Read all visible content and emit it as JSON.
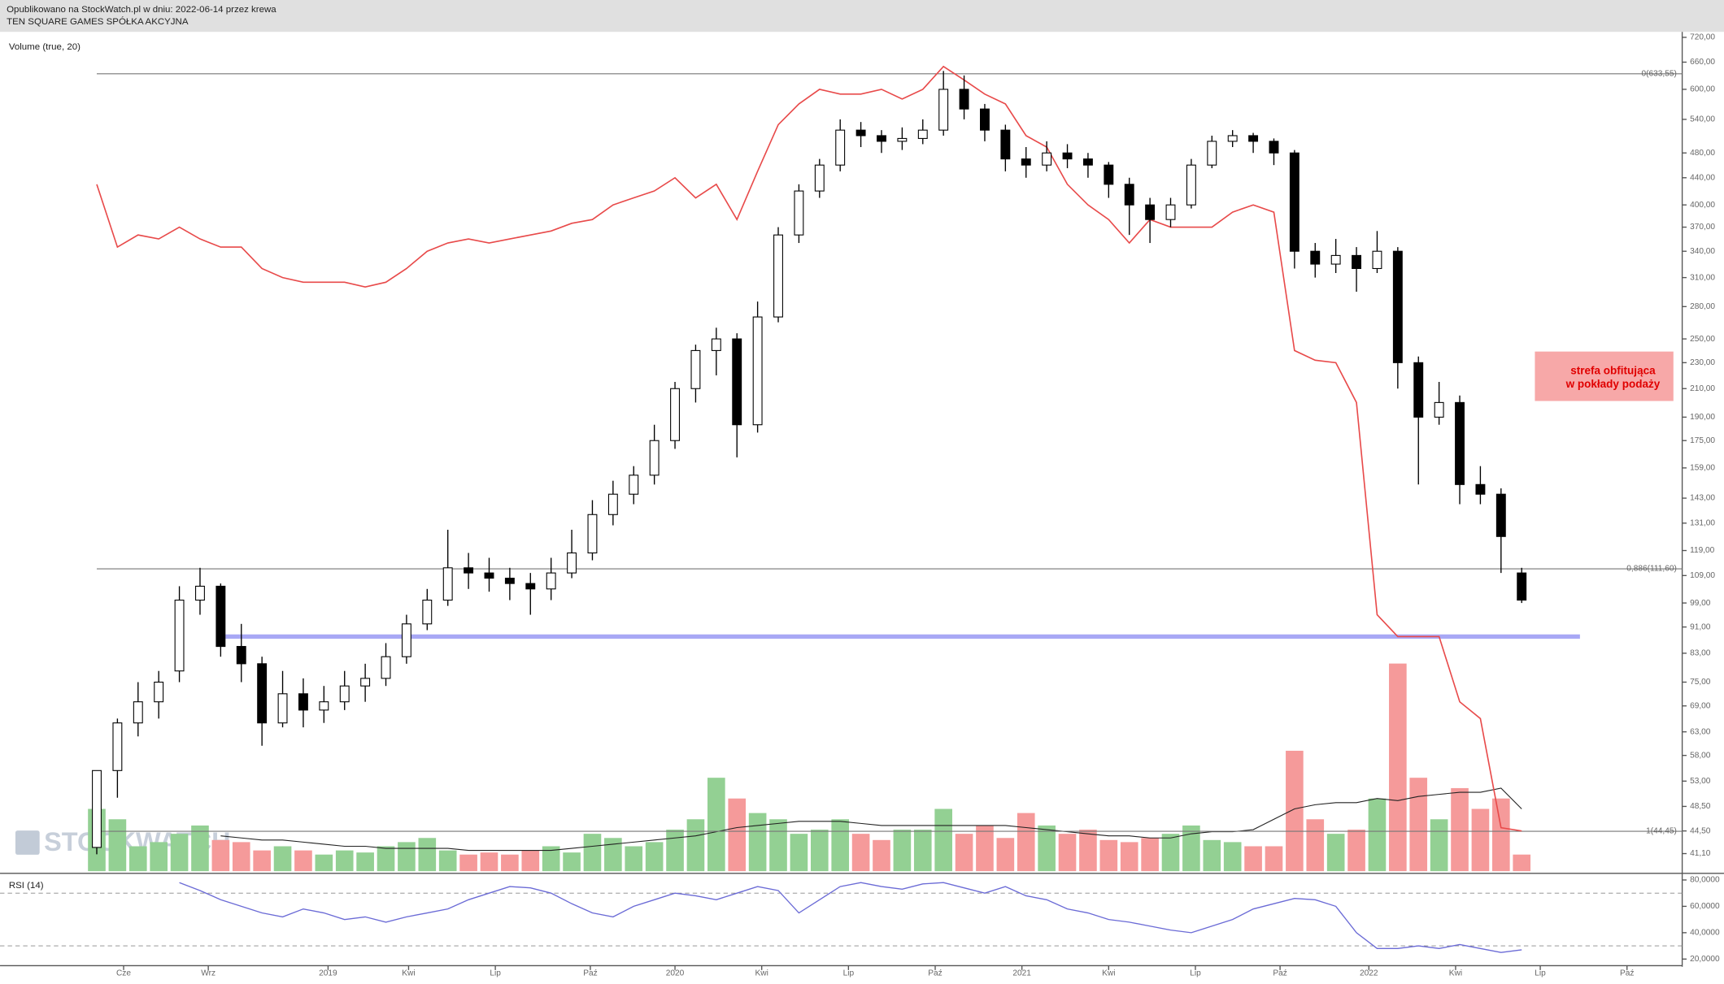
{
  "header": {
    "line1": "Opublikowano na StockWatch.pl w dniu: 2022-06-14 przez krewa",
    "line2": "TEN SQUARE GAMES SPÓŁKA AKCYJNA"
  },
  "watermark": "STOCKWATCH",
  "annotation": {
    "line1": "strefa obfitująca",
    "line2": "w pokłady podaży"
  },
  "chart_data": {
    "type": "candlestick",
    "log_scale": true,
    "ylim": [
      41.1,
      720
    ],
    "yticks": [
      {
        "value": 720,
        "label": "720,00"
      },
      {
        "value": 660,
        "label": "660,00"
      },
      {
        "value": 600,
        "label": "600,00"
      },
      {
        "value": 540,
        "label": "540,00"
      },
      {
        "value": 480,
        "label": "480,00"
      },
      {
        "value": 440,
        "label": "440,00"
      },
      {
        "value": 400,
        "label": "400,00"
      },
      {
        "value": 370,
        "label": "370,00"
      },
      {
        "value": 340,
        "label": "340,00"
      },
      {
        "value": 310,
        "label": "310,00"
      },
      {
        "value": 280,
        "label": "280,00"
      },
      {
        "value": 250,
        "label": "250,00"
      },
      {
        "value": 230,
        "label": "230,00"
      },
      {
        "value": 210,
        "label": "210,00"
      },
      {
        "value": 190,
        "label": "190,00"
      },
      {
        "value": 175,
        "label": "175,00"
      },
      {
        "value": 159,
        "label": "159,00"
      },
      {
        "value": 143,
        "label": "143,00"
      },
      {
        "value": 131,
        "label": "131,00"
      },
      {
        "value": 119,
        "label": "119,00"
      },
      {
        "value": 109,
        "label": "109,00"
      },
      {
        "value": 99,
        "label": "99,00"
      },
      {
        "value": 91,
        "label": "91,00"
      },
      {
        "value": 83,
        "label": "83,00"
      },
      {
        "value": 75,
        "label": "75,00"
      },
      {
        "value": 69,
        "label": "69,00"
      },
      {
        "value": 63,
        "label": "63,00"
      },
      {
        "value": 58,
        "label": "58,00"
      },
      {
        "value": 53,
        "label": "53,00"
      },
      {
        "value": 48.5,
        "label": "48,50"
      },
      {
        "value": 44.5,
        "label": "44,50"
      },
      {
        "value": 41.1,
        "label": "41,10"
      }
    ],
    "xlim": [
      0,
      69
    ],
    "xticks": [
      {
        "value": 1.3,
        "label": "Cze"
      },
      {
        "value": 5.4,
        "label": "Wrz"
      },
      {
        "value": 11.2,
        "label": "2019"
      },
      {
        "value": 15.1,
        "label": "Kwi"
      },
      {
        "value": 19.3,
        "label": "Lip"
      },
      {
        "value": 23.9,
        "label": "Paź"
      },
      {
        "value": 28.0,
        "label": "2020"
      },
      {
        "value": 32.2,
        "label": "Kwi"
      },
      {
        "value": 36.4,
        "label": "Lip"
      },
      {
        "value": 40.6,
        "label": "Paź"
      },
      {
        "value": 44.8,
        "label": "2021"
      },
      {
        "value": 49.0,
        "label": "Kwi"
      },
      {
        "value": 53.2,
        "label": "Lip"
      },
      {
        "value": 57.3,
        "label": "Paź"
      },
      {
        "value": 61.6,
        "label": "2022"
      },
      {
        "value": 65.8,
        "label": "Kwi"
      },
      {
        "value": 69.9,
        "label": "Lip"
      },
      {
        "value": 74.1,
        "label": "Paź"
      }
    ],
    "candles": [
      [
        42,
        55,
        41,
        55
      ],
      [
        55,
        66,
        50,
        65
      ],
      [
        65,
        75,
        62,
        70
      ],
      [
        70,
        78,
        66,
        75
      ],
      [
        78,
        105,
        75,
        100
      ],
      [
        100,
        112,
        95,
        105
      ],
      [
        105,
        106,
        82,
        85
      ],
      [
        85,
        92,
        75,
        80
      ],
      [
        80,
        82,
        60,
        65
      ],
      [
        65,
        78,
        64,
        72
      ],
      [
        72,
        76,
        64,
        68
      ],
      [
        68,
        74,
        65,
        70
      ],
      [
        70,
        78,
        68,
        74
      ],
      [
        74,
        80,
        70,
        76
      ],
      [
        76,
        86,
        74,
        82
      ],
      [
        82,
        95,
        80,
        92
      ],
      [
        92,
        104,
        90,
        100
      ],
      [
        100,
        128,
        98,
        112
      ],
      [
        112,
        118,
        104,
        110
      ],
      [
        110,
        116,
        103,
        108
      ],
      [
        108,
        112,
        100,
        106
      ],
      [
        106,
        110,
        95,
        104
      ],
      [
        104,
        116,
        100,
        110
      ],
      [
        110,
        128,
        108,
        118
      ],
      [
        118,
        142,
        115,
        135
      ],
      [
        135,
        152,
        130,
        145
      ],
      [
        145,
        160,
        140,
        155
      ],
      [
        155,
        185,
        150,
        175
      ],
      [
        175,
        215,
        170,
        210
      ],
      [
        210,
        245,
        200,
        240
      ],
      [
        240,
        260,
        220,
        250
      ],
      [
        250,
        255,
        165,
        185
      ],
      [
        185,
        285,
        180,
        270
      ],
      [
        270,
        370,
        265,
        360
      ],
      [
        360,
        430,
        350,
        420
      ],
      [
        420,
        470,
        410,
        460
      ],
      [
        460,
        540,
        450,
        520
      ],
      [
        520,
        535,
        490,
        510
      ],
      [
        510,
        520,
        480,
        500
      ],
      [
        500,
        525,
        485,
        505
      ],
      [
        505,
        540,
        495,
        520
      ],
      [
        520,
        640,
        510,
        600
      ],
      [
        600,
        630,
        540,
        560
      ],
      [
        560,
        570,
        500,
        520
      ],
      [
        520,
        530,
        450,
        470
      ],
      [
        470,
        490,
        440,
        460
      ],
      [
        460,
        500,
        450,
        480
      ],
      [
        480,
        495,
        455,
        470
      ],
      [
        470,
        480,
        440,
        460
      ],
      [
        460,
        465,
        410,
        430
      ],
      [
        430,
        440,
        360,
        400
      ],
      [
        400,
        410,
        350,
        380
      ],
      [
        380,
        410,
        370,
        400
      ],
      [
        400,
        470,
        395,
        460
      ],
      [
        460,
        510,
        455,
        500
      ],
      [
        500,
        520,
        490,
        510
      ],
      [
        510,
        515,
        480,
        500
      ],
      [
        500,
        505,
        460,
        480
      ],
      [
        480,
        485,
        320,
        340
      ],
      [
        340,
        350,
        310,
        325
      ],
      [
        325,
        355,
        315,
        335
      ],
      [
        335,
        345,
        295,
        320
      ],
      [
        320,
        365,
        315,
        340
      ],
      [
        340,
        345,
        210,
        230
      ],
      [
        230,
        235,
        150,
        190
      ],
      [
        190,
        215,
        185,
        200
      ],
      [
        200,
        205,
        140,
        150
      ],
      [
        150,
        160,
        140,
        145
      ],
      [
        145,
        148,
        110,
        125
      ],
      [
        110,
        112,
        99,
        100
      ]
    ],
    "comparison": {
      "color": "#e84a4a",
      "values": [
        430,
        345,
        360,
        355,
        370,
        355,
        345,
        345,
        320,
        310,
        305,
        305,
        305,
        300,
        305,
        320,
        340,
        350,
        355,
        350,
        355,
        360,
        365,
        375,
        380,
        400,
        410,
        420,
        440,
        410,
        430,
        380,
        450,
        530,
        570,
        600,
        590,
        590,
        600,
        580,
        600,
        650,
        620,
        590,
        570,
        510,
        490,
        430,
        400,
        380,
        350,
        380,
        370,
        370,
        370,
        390,
        400,
        390,
        240,
        232,
        230,
        200,
        95,
        88,
        88,
        88,
        70,
        66,
        45,
        44.5
      ]
    },
    "levels": [
      {
        "value": 633.55,
        "label": "0(633,55)"
      },
      {
        "value": 111.6,
        "label": "0,886(111,60)"
      },
      {
        "value": 44.45,
        "label": "1(44,45)"
      }
    ],
    "support": {
      "value": 88,
      "color": "#a8a8f5"
    },
    "volume": {
      "title": "Volume (true, 20)",
      "vlim": [
        0,
        100
      ],
      "up_color": "#93d093",
      "down_color": "#f59a9a",
      "values": [
        30,
        25,
        12,
        14,
        18,
        22,
        15,
        14,
        10,
        12,
        10,
        8,
        10,
        9,
        12,
        14,
        16,
        10,
        8,
        9,
        8,
        10,
        12,
        9,
        18,
        16,
        12,
        14,
        20,
        25,
        45,
        35,
        28,
        25,
        18,
        20,
        25,
        18,
        15,
        20,
        20,
        30,
        18,
        22,
        16,
        28,
        22,
        18,
        20,
        15,
        14,
        16,
        18,
        22,
        15,
        14,
        12,
        12,
        58,
        25,
        18,
        20,
        35,
        100,
        45,
        25,
        40,
        30,
        35,
        8
      ],
      "ma": [
        null,
        null,
        null,
        null,
        null,
        null,
        17,
        16,
        15,
        15,
        14,
        13,
        12,
        12,
        11,
        11,
        11,
        11,
        10,
        10,
        10,
        10,
        10,
        11,
        12,
        13,
        14,
        15,
        16,
        17,
        19,
        21,
        22,
        23,
        24,
        24,
        24,
        23,
        22,
        22,
        22,
        22,
        22,
        22,
        22,
        21,
        20,
        19,
        18,
        17,
        17,
        16,
        16,
        18,
        19,
        19,
        20,
        25,
        30,
        32,
        33,
        33,
        35,
        34,
        36,
        37,
        38,
        38,
        40,
        30
      ]
    },
    "rsi": {
      "title": "RSI (14)",
      "color": "#6b6bd6",
      "ylim": [
        20,
        80
      ],
      "levels": [
        70,
        30
      ],
      "yticks": [
        {
          "value": 80,
          "label": "80,0000"
        },
        {
          "value": 60,
          "label": "60,0000"
        },
        {
          "value": 40,
          "label": "40,0000"
        },
        {
          "value": 20,
          "label": "20,0000"
        }
      ],
      "values": [
        null,
        null,
        null,
        null,
        78,
        72,
        65,
        60,
        55,
        52,
        58,
        55,
        50,
        52,
        48,
        52,
        55,
        58,
        65,
        70,
        75,
        74,
        70,
        62,
        55,
        52,
        60,
        65,
        70,
        68,
        65,
        70,
        75,
        72,
        55,
        65,
        75,
        78,
        75,
        73,
        77,
        78,
        74,
        70,
        75,
        68,
        65,
        58,
        55,
        50,
        48,
        45,
        42,
        40,
        45,
        50,
        58,
        62,
        66,
        65,
        60,
        40,
        28,
        28,
        30,
        28,
        31,
        28,
        25,
        27
      ]
    }
  }
}
